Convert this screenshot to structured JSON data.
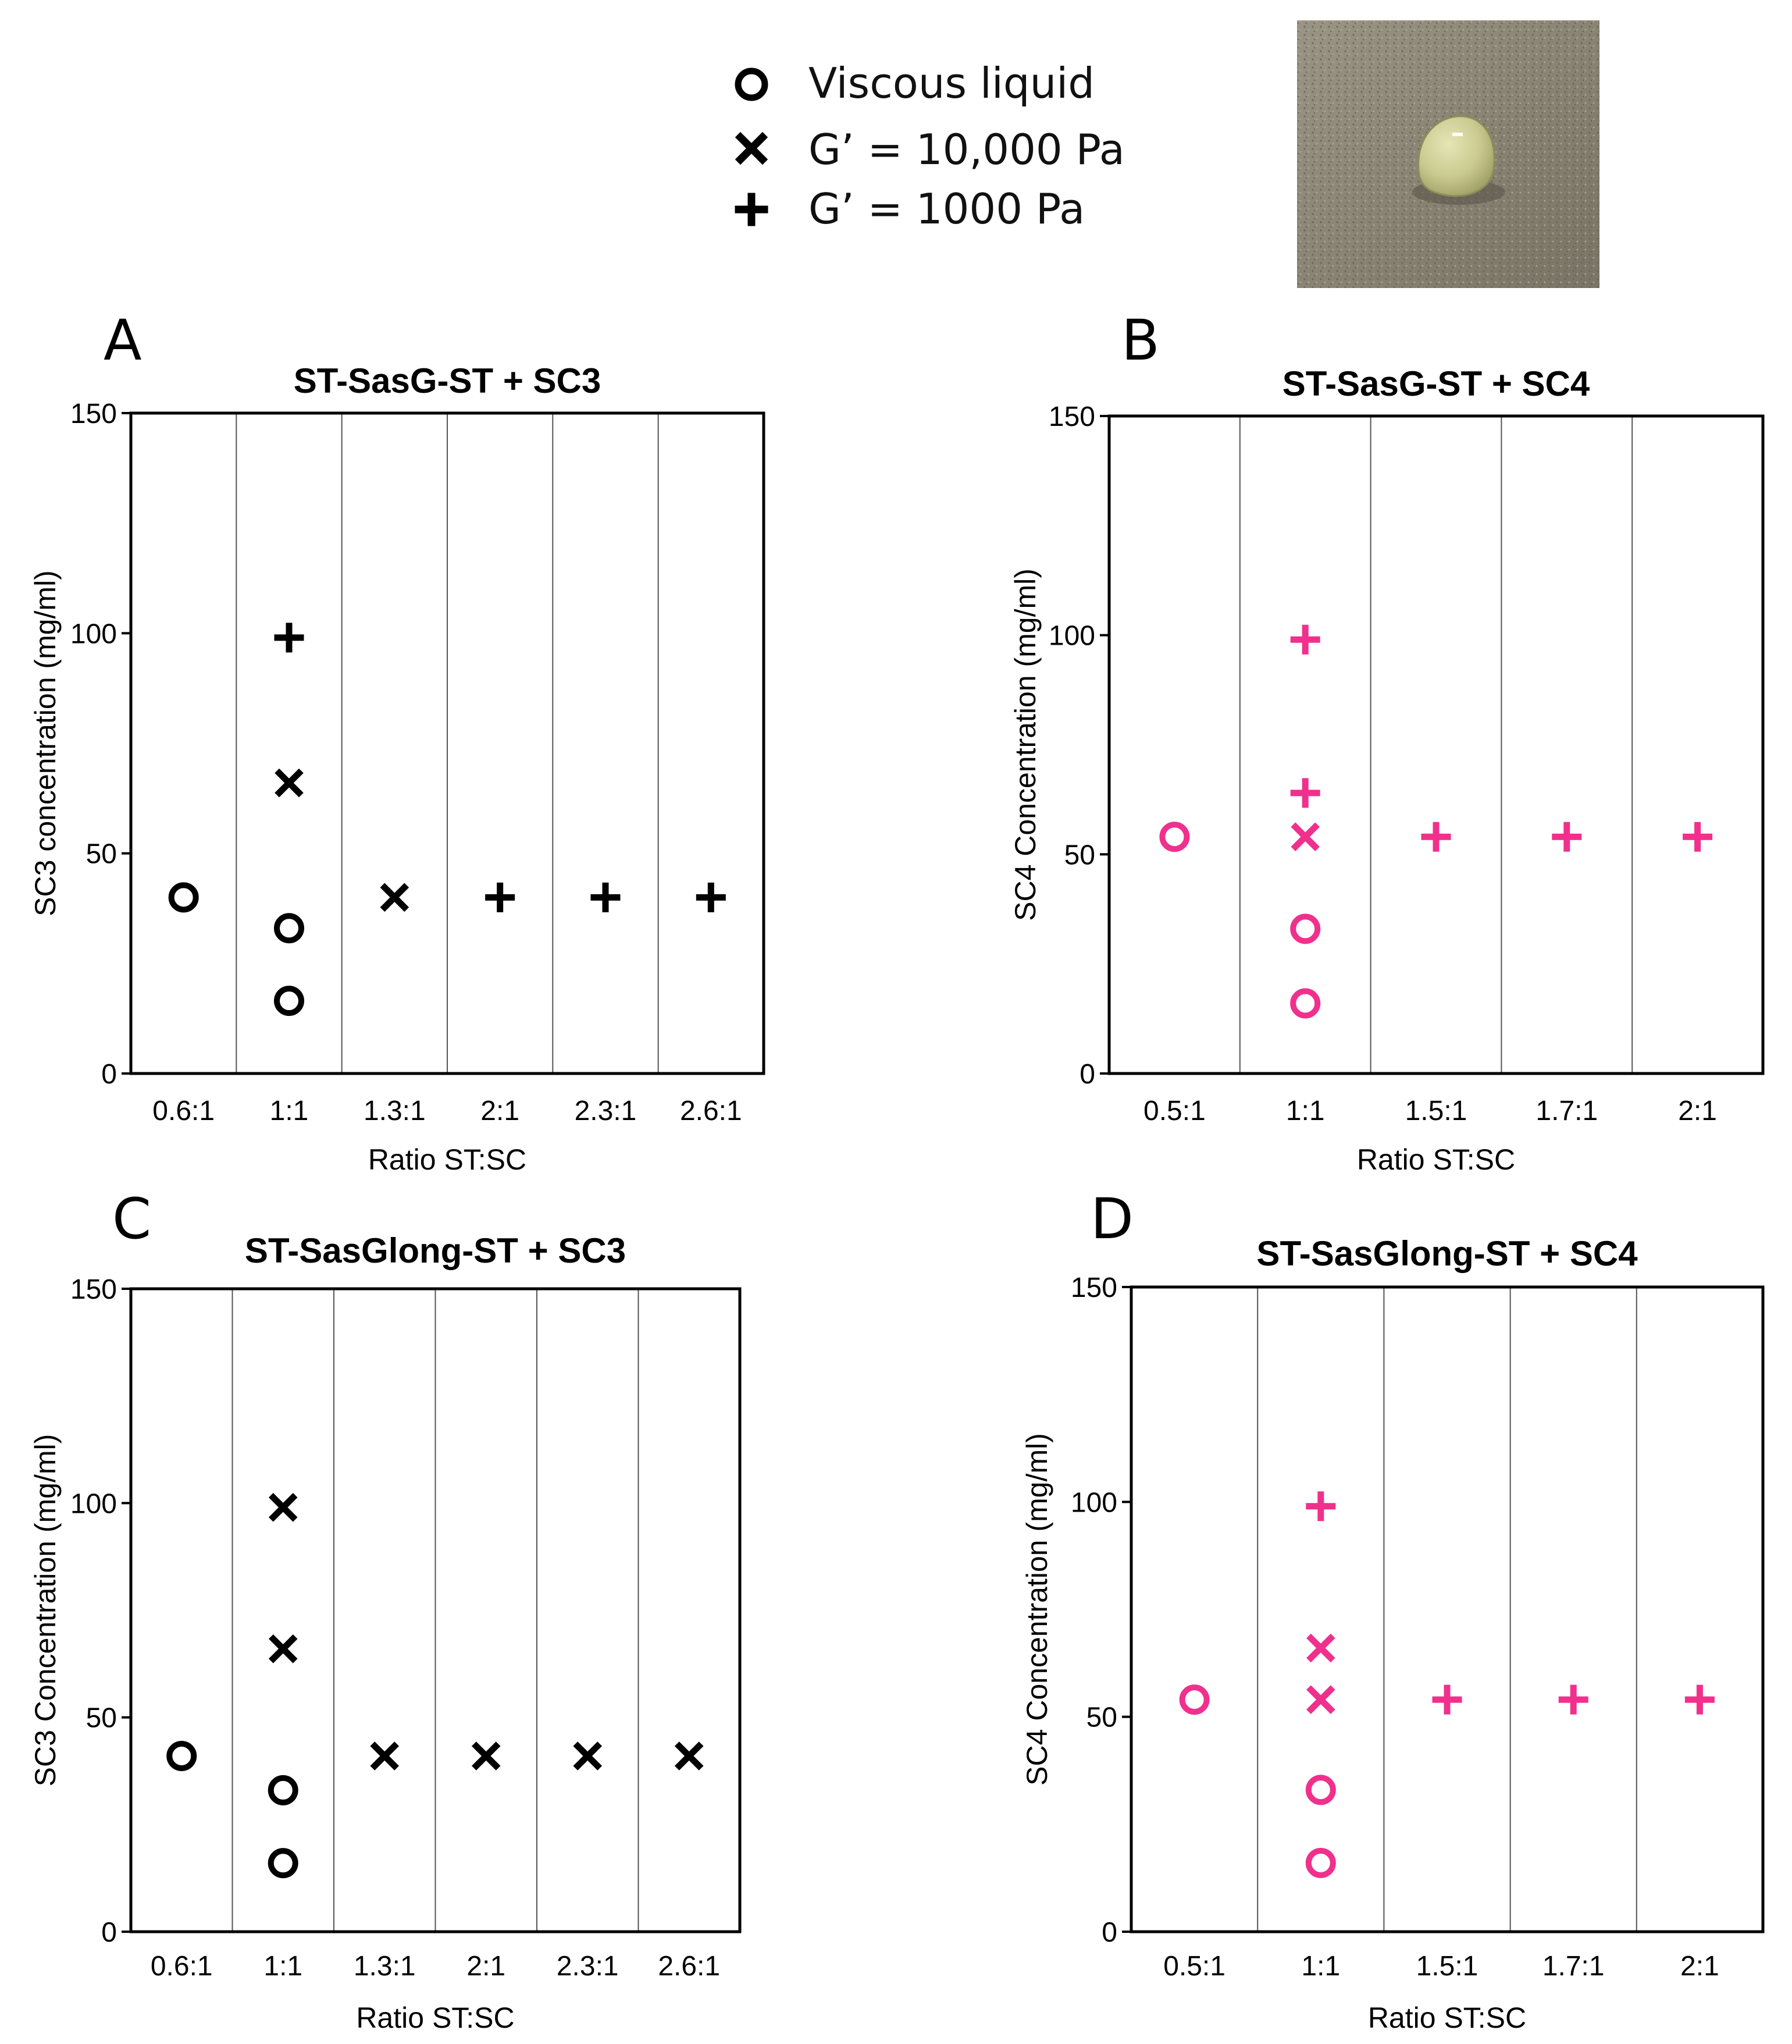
{
  "legend": {
    "items": [
      {
        "marker": "circle-icon",
        "label": "Viscous liquid"
      },
      {
        "marker": "cross-icon",
        "label": "G’ = 10,000 Pa"
      },
      {
        "marker": "plus-icon",
        "label": "G’ = 1000 Pa"
      }
    ]
  },
  "photo": {
    "description_icon": "hydrogel-droplet-photo"
  },
  "colors": {
    "black": "#000000",
    "pink": "#f0308c"
  },
  "chart_data": [
    {
      "panel": "A",
      "type": "scatter",
      "title": "ST-SasG-ST + SC3",
      "xlabel": "Ratio ST:SC",
      "ylabel": "SC3 concentration (mg/ml)",
      "categories": [
        "0.6:1",
        "1:1",
        "1.3:1",
        "2:1",
        "2.3:1",
        "2.6:1"
      ],
      "ylim": [
        0,
        150
      ],
      "yticks": [
        "0",
        "50",
        "100",
        "150"
      ],
      "color": "#000000",
      "points": [
        {
          "category": 0,
          "y": 40,
          "marker": "circle"
        },
        {
          "category": 1,
          "y": 99,
          "marker": "plus"
        },
        {
          "category": 1,
          "y": 66,
          "marker": "cross"
        },
        {
          "category": 1,
          "y": 33,
          "marker": "circle"
        },
        {
          "category": 1,
          "y": 16.5,
          "marker": "circle"
        },
        {
          "category": 2,
          "y": 40,
          "marker": "cross"
        },
        {
          "category": 3,
          "y": 40,
          "marker": "plus"
        },
        {
          "category": 4,
          "y": 40,
          "marker": "plus"
        },
        {
          "category": 5,
          "y": 40,
          "marker": "plus"
        }
      ]
    },
    {
      "panel": "B",
      "type": "scatter",
      "title": "ST-SasG-ST + SC4",
      "xlabel": "Ratio ST:SC",
      "ylabel": "SC4 Concentration (mg/ml)",
      "categories": [
        "0.5:1",
        "1:1",
        "1.5:1",
        "1.7:1",
        "2:1"
      ],
      "ylim": [
        0,
        150
      ],
      "yticks": [
        "0",
        "50",
        "100",
        "150"
      ],
      "color": "#f0308c",
      "points": [
        {
          "category": 0,
          "y": 54,
          "marker": "circle"
        },
        {
          "category": 1,
          "y": 99,
          "marker": "plus"
        },
        {
          "category": 1,
          "y": 64,
          "marker": "plus"
        },
        {
          "category": 1,
          "y": 54,
          "marker": "cross"
        },
        {
          "category": 1,
          "y": 33,
          "marker": "circle"
        },
        {
          "category": 1,
          "y": 16,
          "marker": "circle"
        },
        {
          "category": 2,
          "y": 54,
          "marker": "plus"
        },
        {
          "category": 3,
          "y": 54,
          "marker": "plus"
        },
        {
          "category": 4,
          "y": 54,
          "marker": "plus"
        }
      ]
    },
    {
      "panel": "C",
      "type": "scatter",
      "title": "ST-SasGlong-ST + SC3",
      "xlabel": "Ratio ST:SC",
      "ylabel": "SC3 Concentration (mg/ml)",
      "categories": [
        "0.6:1",
        "1:1",
        "1.3:1",
        "2:1",
        "2.3:1",
        "2.6:1"
      ],
      "ylim": [
        0,
        150
      ],
      "yticks": [
        "0",
        "50",
        "100",
        "150"
      ],
      "color": "#000000",
      "points": [
        {
          "category": 0,
          "y": 41,
          "marker": "circle"
        },
        {
          "category": 1,
          "y": 99,
          "marker": "cross"
        },
        {
          "category": 1,
          "y": 66,
          "marker": "cross"
        },
        {
          "category": 1,
          "y": 33,
          "marker": "circle"
        },
        {
          "category": 1,
          "y": 16,
          "marker": "circle"
        },
        {
          "category": 2,
          "y": 41,
          "marker": "cross"
        },
        {
          "category": 3,
          "y": 41,
          "marker": "cross"
        },
        {
          "category": 4,
          "y": 41,
          "marker": "cross"
        },
        {
          "category": 5,
          "y": 41,
          "marker": "cross"
        }
      ]
    },
    {
      "panel": "D",
      "type": "scatter",
      "title": "ST-SasGlong-ST + SC4",
      "xlabel": "Ratio ST:SC",
      "ylabel": "SC4 Concentration (mg/ml)",
      "categories": [
        "0.5:1",
        "1:1",
        "1.5:1",
        "1.7:1",
        "2:1"
      ],
      "ylim": [
        0,
        150
      ],
      "yticks": [
        "0",
        "50",
        "100",
        "150"
      ],
      "color": "#f0308c",
      "points": [
        {
          "category": 0,
          "y": 54,
          "marker": "circle"
        },
        {
          "category": 1,
          "y": 99,
          "marker": "plus"
        },
        {
          "category": 1,
          "y": 66,
          "marker": "cross"
        },
        {
          "category": 1,
          "y": 54,
          "marker": "cross"
        },
        {
          "category": 1,
          "y": 33,
          "marker": "circle"
        },
        {
          "category": 1,
          "y": 16,
          "marker": "circle"
        },
        {
          "category": 2,
          "y": 54,
          "marker": "plus"
        },
        {
          "category": 3,
          "y": 54,
          "marker": "plus"
        },
        {
          "category": 4,
          "y": 54,
          "marker": "plus"
        }
      ]
    }
  ]
}
